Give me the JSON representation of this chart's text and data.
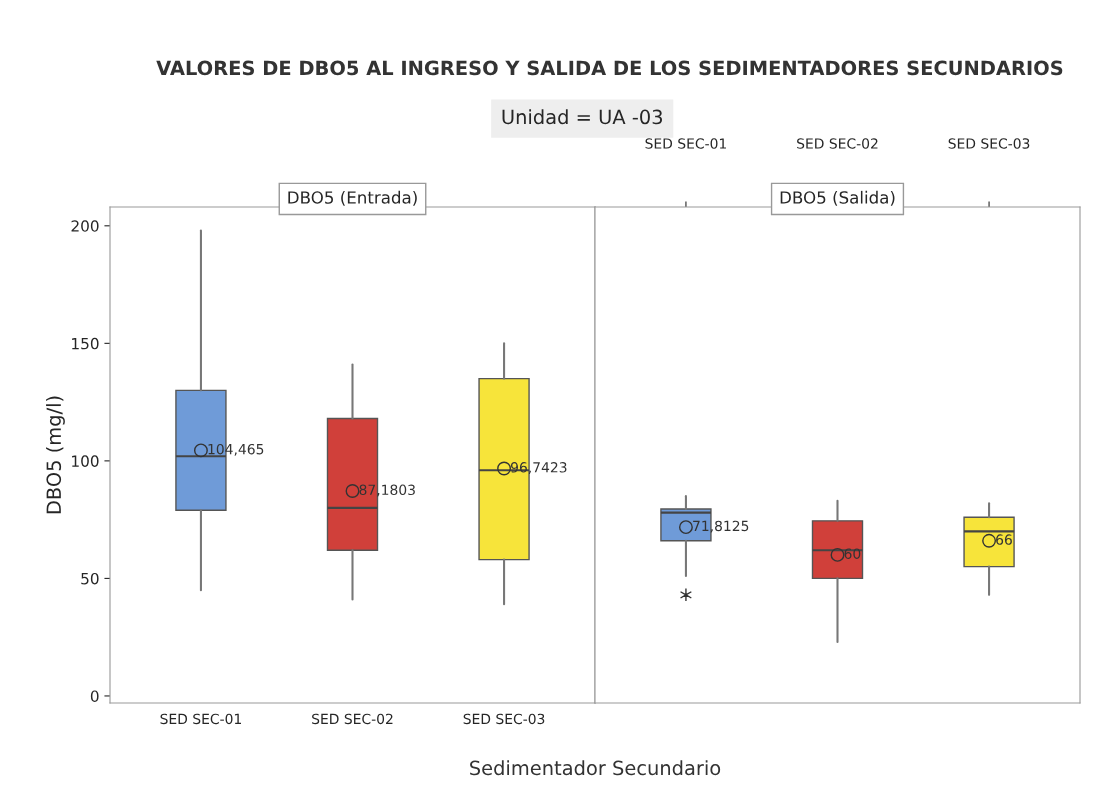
{
  "chart_data": [
    {
      "type": "box",
      "title": "VALORES DE DBO5 AL INGRESO Y SALIDA DE LOS SEDIMENTADORES SECUNDARIOS",
      "subtitle": "Unidad = UA -03",
      "xlabel": "Sedimentador Secundario",
      "ylabel": "DBO5 (mg/l)",
      "annotations": [
        "DBO5 (Entrada)"
      ],
      "categories": [
        "SED SEC-01",
        "SED SEC-02",
        "SED SEC-03"
      ],
      "colors": [
        "#6f9bd8",
        "#d0403a",
        "#f7e43a"
      ],
      "boxes": [
        {
          "low": 45,
          "q1": 79,
          "median": 102,
          "q3": 130,
          "high": 198,
          "mean": 104.465
        },
        {
          "low": 41,
          "q1": 62,
          "median": 80,
          "q3": 118,
          "high": 141,
          "mean": 87.1803
        },
        {
          "low": 39,
          "q1": 58,
          "median": 96,
          "q3": 135,
          "high": 150,
          "mean": 96.7423
        }
      ],
      "value_labels": [
        "104,465",
        "87,1803",
        "96,7423"
      ],
      "ylim": [
        -3,
        208
      ],
      "yticks": [
        0,
        50,
        100,
        150,
        200
      ],
      "grid": false,
      "marker": "circle"
    },
    {
      "type": "box",
      "annotations": [
        "DBO5 (Salida)"
      ],
      "categories": [
        "SED SEC-01",
        "SED SEC-02",
        "SED SEC-03"
      ],
      "colors": [
        "#6f9bd8",
        "#d0403a",
        "#f7e43a"
      ],
      "boxes": [
        {
          "low": 51,
          "q1": 66,
          "median": 78,
          "q3": 79.5,
          "high": 85,
          "mean": 71.8125,
          "outliers": [
            43
          ]
        },
        {
          "low": 23,
          "q1": 50,
          "median": 62,
          "q3": 74.5,
          "high": 83,
          "mean": 60
        },
        {
          "low": 43,
          "q1": 55,
          "median": 70,
          "q3": 76,
          "high": 82,
          "mean": 66
        }
      ],
      "value_labels": [
        "71,8125",
        "60",
        "66"
      ],
      "ylim": [
        -3,
        208
      ],
      "yticks": [
        0,
        50,
        100,
        150,
        200
      ],
      "tick_labels": "x",
      "grid": false,
      "marker": "circle"
    }
  ]
}
